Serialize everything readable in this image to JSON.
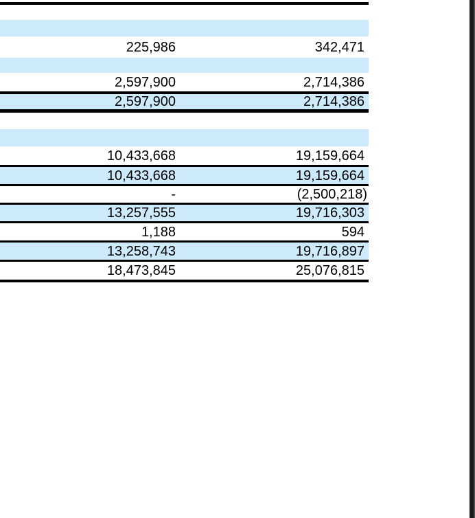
{
  "app": {
    "type": "document-viewer",
    "content": "financial-statement-table-fragment"
  },
  "colors": {
    "highlight_blue": "#cdeafb",
    "rule_black": "#000000",
    "page_white": "#ffffff",
    "viewer_edge_dark": "#1b1b1b",
    "viewer_edge_gray": "#4a4a4a"
  },
  "table": {
    "description": "Two right-aligned numeric columns with alternating light-blue highlight bands and black rule lines; row labels are cropped out of view on the left.",
    "rows": [
      {
        "kind": "rule-thick"
      },
      {
        "kind": "blank"
      },
      {
        "kind": "blank-highlight"
      },
      {
        "kind": "data",
        "col1": "225,986",
        "col2": "342,471"
      },
      {
        "kind": "blank-highlight"
      },
      {
        "kind": "data",
        "col1": "2,597,900",
        "col2": "2,714,386"
      },
      {
        "kind": "data-highlight",
        "col1": "2,597,900",
        "col2": "2,714,386"
      },
      {
        "kind": "blank"
      },
      {
        "kind": "blank-highlight"
      },
      {
        "kind": "data",
        "col1": "10,433,668",
        "col2": "19,159,664"
      },
      {
        "kind": "data-highlight",
        "col1": "10,433,668",
        "col2": "19,159,664"
      },
      {
        "kind": "data",
        "col1": "-",
        "col2": "(2,500,218)"
      },
      {
        "kind": "data-highlight",
        "col1": "13,257,555",
        "col2": "19,716,303"
      },
      {
        "kind": "data",
        "col1": "1,188",
        "col2": "594"
      },
      {
        "kind": "data-highlight",
        "col1": "13,258,743",
        "col2": "19,716,897"
      },
      {
        "kind": "data",
        "col1": "18,473,845",
        "col2": "25,076,815"
      }
    ]
  }
}
